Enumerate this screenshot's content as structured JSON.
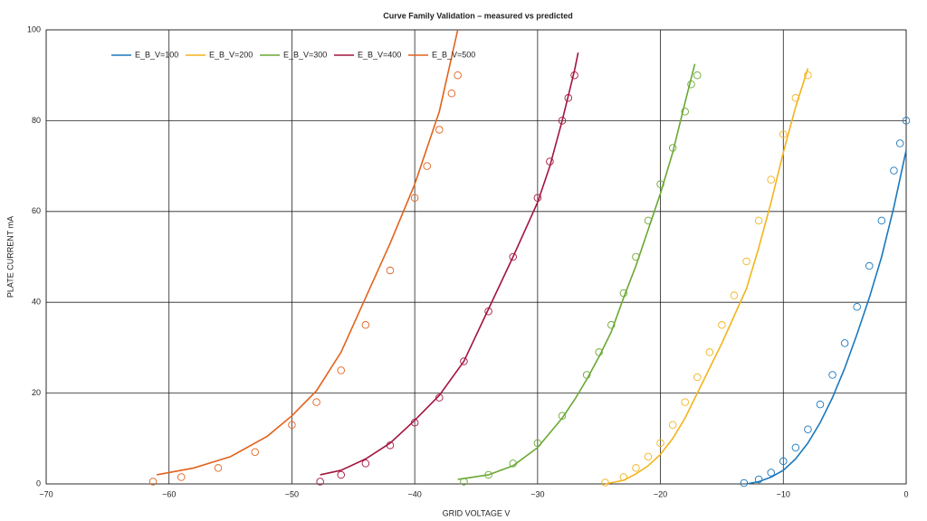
{
  "chart_data": {
    "type": "line",
    "title": "Curve Family Validation – measured vs predicted",
    "x_label": "GRID VOLTAGE V",
    "y_label": "PLATE CURRENT mA",
    "xlim": [
      -70,
      0
    ],
    "xticks": [
      {
        "value": -70,
        "label": "−70"
      },
      {
        "value": -60,
        "label": "−60"
      },
      {
        "value": -50,
        "label": "−50"
      },
      {
        "value": -40,
        "label": "−40"
      },
      {
        "value": -30,
        "label": "−30"
      },
      {
        "value": -20,
        "label": "−20"
      },
      {
        "value": -10,
        "label": "−10"
      },
      0
    ],
    "ylim": [
      0,
      100
    ],
    "yticks": [
      0,
      20,
      40,
      60,
      80,
      100
    ],
    "grid": true,
    "legend": "upper left",
    "series": [
      {
        "name": "E_B_V=100",
        "color": "#1a78bd",
        "x": [
          -13,
          -12,
          -11,
          -10,
          -9,
          -8,
          -7,
          -6,
          -5,
          -4,
          -3,
          -2,
          -1,
          0
        ],
        "values": [
          0,
          0.5,
          1.5,
          3,
          5.5,
          9,
          13.5,
          19,
          25.5,
          33,
          41,
          50,
          61,
          73.5
        ],
        "measured": {
          "x": [
            -13.2,
            -12,
            -11,
            -10,
            -9,
            -8,
            -7,
            -6,
            -5,
            -4,
            -3,
            -2,
            -1,
            -0.5,
            0
          ],
          "values": [
            0.2,
            1,
            2.5,
            5,
            8,
            12,
            17.5,
            24,
            31,
            39,
            48,
            58,
            69,
            75,
            80
          ]
        }
      },
      {
        "name": "E_B_V=200",
        "color": "#f2b41c",
        "x": [
          -24.5,
          -23,
          -22,
          -21,
          -20,
          -19,
          -18,
          -17,
          -16,
          -15,
          -14,
          -13,
          -12,
          -11,
          -10,
          -9,
          -8
        ],
        "values": [
          0,
          0.8,
          2.2,
          4,
          6.5,
          10,
          14.5,
          20,
          25.5,
          31,
          37,
          43,
          52,
          62,
          73,
          83,
          91.5
        ],
        "measured": {
          "x": [
            -24.5,
            -23,
            -22,
            -21,
            -20,
            -19,
            -18,
            -17,
            -16,
            -15,
            -14,
            -13,
            -12,
            -11,
            -10,
            -9,
            -8
          ],
          "values": [
            0.3,
            1.5,
            3.5,
            6,
            9,
            13,
            18,
            23.5,
            29,
            35,
            41.5,
            49,
            58,
            67,
            77,
            85,
            90
          ]
        }
      },
      {
        "name": "E_B_V=300",
        "color": "#6aa832",
        "x": [
          -36.5,
          -34,
          -32,
          -30,
          -28,
          -27,
          -26,
          -25,
          -24,
          -23,
          -22,
          -21,
          -20,
          -19,
          -18,
          -17.2
        ],
        "values": [
          1,
          2,
          4,
          8,
          14.5,
          18.5,
          23,
          28,
          33.5,
          41,
          48,
          56,
          64,
          73,
          84,
          92.5
        ],
        "measured": {
          "x": [
            -36,
            -34,
            -32,
            -30,
            -28,
            -26,
            -25,
            -24,
            -23,
            -22,
            -21,
            -20,
            -19,
            -18,
            -17.5,
            -17
          ],
          "values": [
            0.5,
            2,
            4.5,
            9,
            15,
            24,
            29,
            35,
            42,
            50,
            58,
            66,
            74,
            82,
            88,
            90
          ]
        }
      },
      {
        "name": "E_B_V=400",
        "color": "#a3153e",
        "x": [
          -47.7,
          -46,
          -44,
          -42,
          -40,
          -38,
          -36,
          -34,
          -32,
          -30,
          -29,
          -28,
          -27,
          -26.7
        ],
        "values": [
          2,
          3,
          5.5,
          9,
          14,
          19.5,
          27,
          38.5,
          50,
          62,
          70,
          80,
          91,
          95
        ],
        "measured": {
          "x": [
            -47.7,
            -46,
            -44,
            -42,
            -40,
            -38,
            -36,
            -34,
            -32,
            -30,
            -29,
            -28,
            -27.5,
            -27
          ],
          "values": [
            0.5,
            2,
            4.5,
            8.5,
            13.5,
            19,
            27,
            38,
            50,
            63,
            71,
            80,
            85,
            90
          ]
        }
      },
      {
        "name": "E_B_V=500",
        "color": "#e2621c",
        "x": [
          -61,
          -58,
          -55,
          -52,
          -50,
          -48,
          -46,
          -44,
          -42,
          -40,
          -38,
          -36.5
        ],
        "values": [
          2,
          3.5,
          6,
          10.5,
          15,
          20.5,
          29,
          41,
          53,
          66,
          82,
          100
        ],
        "measured": {
          "x": [
            -61.3,
            -59,
            -56,
            -53,
            -50,
            -48,
            -46,
            -44,
            -42,
            -40,
            -39,
            -38,
            -37,
            -36.5
          ],
          "values": [
            0.5,
            1.5,
            3.5,
            7,
            13,
            18,
            25,
            35,
            47,
            63,
            70,
            78,
            86,
            90
          ]
        }
      }
    ]
  }
}
